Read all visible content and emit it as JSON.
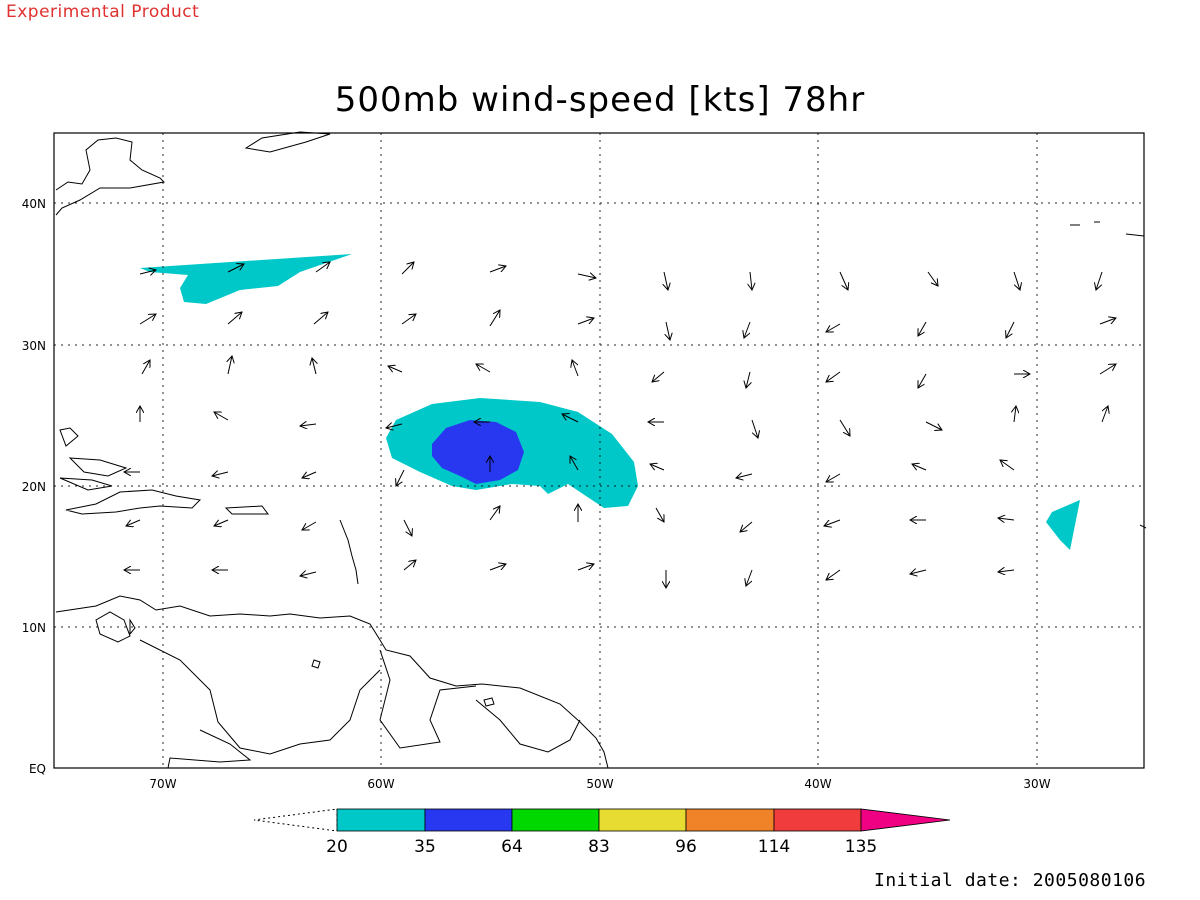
{
  "header": {
    "product_label": "Experimental Product"
  },
  "map": {
    "title": "500mb wind-speed [kts] 78hr",
    "lon_ticks": [
      "70W",
      "60W",
      "50W",
      "40W",
      "30W"
    ],
    "lat_ticks": [
      "40N",
      "30N",
      "20N",
      "10N",
      "EQ"
    ],
    "projection": "lat-lon",
    "grid": "dotted",
    "fill_colors": {
      "20": "#00c8c8",
      "35": "#2838f0",
      "64": "#00d800",
      "83": "#e6dc32",
      "96": "#f08228",
      "114": "#f03c3c",
      "135": "#f00082"
    }
  },
  "legend": {
    "labels": [
      "20",
      "35",
      "64",
      "83",
      "96",
      "114",
      "135"
    ],
    "colors": [
      "#00c8c8",
      "#2838f0",
      "#00d800",
      "#e6dc32",
      "#f08228",
      "#f03c3c",
      "#f00082"
    ],
    "placement": "bottom-center"
  },
  "footer": {
    "initial_date": "Initial date: 2005080106"
  }
}
